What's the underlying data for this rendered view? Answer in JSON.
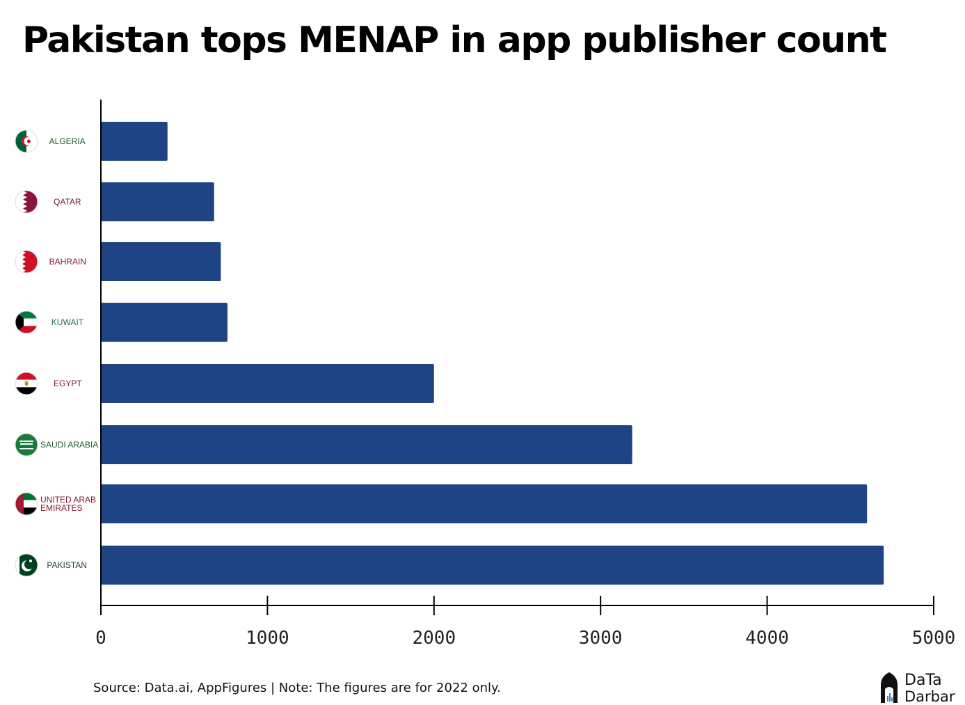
{
  "title": "Pakistan tops MENAP in app publisher count",
  "source_note": "Source: Data.ai, AppFigures | Note: The figures are for 2022 only.",
  "brand": {
    "line1": "DaTa",
    "line2": "Darbar"
  },
  "colors": {
    "bar": "#1e4485",
    "axis": "#000000",
    "text_green": "#1d5a2c",
    "text_maroon": "#7b1634"
  },
  "chart_data": {
    "type": "bar",
    "orientation": "horizontal",
    "categories": [
      "ALGERIA",
      "QATAR",
      "BAHRAIN",
      "KUWAIT",
      "EGYPT",
      "SAUDI ARABIA",
      "UNITED ARAB EMIRATES",
      "PAKISTAN"
    ],
    "label_lines": [
      [
        "ALGERIA"
      ],
      [
        "QATAR"
      ],
      [
        "BAHRAIN"
      ],
      [
        "KUWAIT"
      ],
      [
        "EGYPT"
      ],
      [
        "SAUDI ARABIA"
      ],
      [
        "UNITED ARAB",
        "EMIRATES"
      ],
      [
        "PAKISTAN"
      ]
    ],
    "label_colors": [
      "#1d5a2c",
      "#6b1a3c",
      "#8a1a2e",
      "#2a6a4a",
      "#7b1634",
      "#1d5a2c",
      "#8a1a2e",
      "#1d4a2c"
    ],
    "flags": [
      "algeria-flag",
      "qatar-flag",
      "bahrain-flag",
      "kuwait-flag",
      "egypt-flag",
      "saudi-arabia-flag",
      "uae-flag",
      "pakistan-flag"
    ],
    "values": [
      400,
      680,
      720,
      760,
      2000,
      3190,
      4600,
      4700
    ],
    "xlim": [
      0,
      5000
    ],
    "xticks": [
      0,
      1000,
      2000,
      3000,
      4000,
      5000
    ],
    "xlabel": "",
    "ylabel": "",
    "grid": false,
    "legend": "none"
  }
}
